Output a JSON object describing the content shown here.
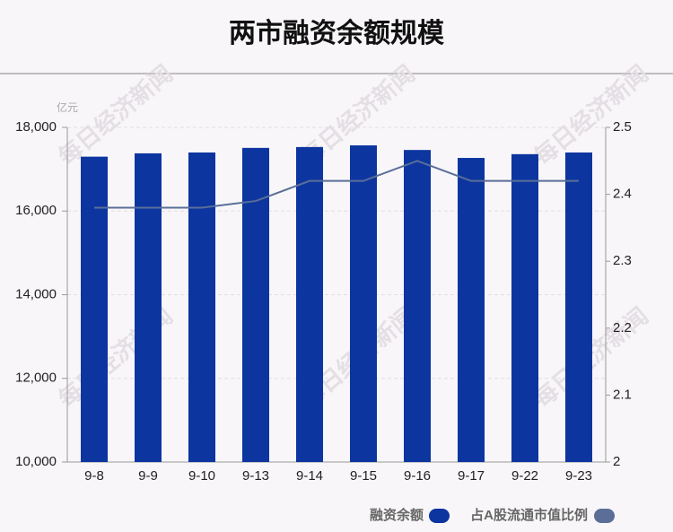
{
  "chart_data": {
    "type": "bar_line",
    "title": "两市融资余额规模",
    "y_unit": "亿元",
    "watermark": "每日经济新闻",
    "categories": [
      "9-8",
      "9-9",
      "9-10",
      "9-13",
      "9-14",
      "9-15",
      "9-16",
      "9-17",
      "9-22",
      "9-23"
    ],
    "series": [
      {
        "name": "融资余额",
        "color": "#0c35a0",
        "values": [
          17300,
          17380,
          17400,
          17510,
          17530,
          17570,
          17460,
          17270,
          17360,
          17400
        ]
      },
      {
        "name": "占A股流通市值比例",
        "color": "#5a6e98",
        "axis": "y2",
        "values": [
          2.38,
          2.38,
          2.38,
          2.39,
          2.42,
          2.42,
          2.45,
          2.42,
          2.42,
          2.42
        ]
      }
    ],
    "ylim": [
      10000,
      18000
    ],
    "yticks": [
      {
        "value": 10000,
        "label": "10,000"
      },
      {
        "value": 12000,
        "label": "12,000"
      },
      {
        "value": 14000,
        "label": "14,000"
      },
      {
        "value": 16000,
        "label": "16,000"
      },
      {
        "value": 18000,
        "label": "18,000"
      }
    ],
    "y2lim": [
      2,
      2.5
    ],
    "y2ticks": [
      2,
      2.1,
      2.2,
      2.3,
      2.4,
      2.5
    ],
    "grid": true
  }
}
